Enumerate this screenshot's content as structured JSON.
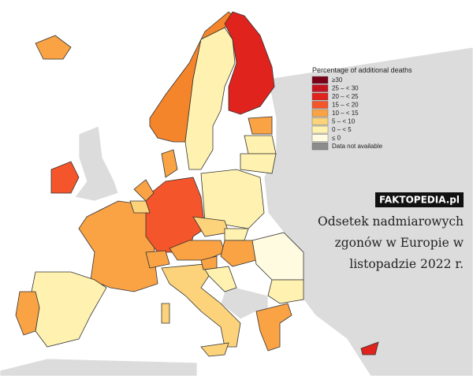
{
  "legend": {
    "title": "Percentage of additional deaths",
    "items": [
      {
        "label": "≥30",
        "color": "#7a0019"
      },
      {
        "label": "25 – < 30",
        "color": "#c4141f"
      },
      {
        "label": "20 – < 25",
        "color": "#e0231d"
      },
      {
        "label": "15 – < 20",
        "color": "#f4552b"
      },
      {
        "label": "10 – < 15",
        "color": "#f9a345"
      },
      {
        "label": "5 – < 10",
        "color": "#fcd37a"
      },
      {
        "label": "0 – < 5",
        "color": "#fff2b0"
      },
      {
        "label": "≤ 0",
        "color": "#fffbe0"
      },
      {
        "label": "Data not available",
        "color": "#8c8c8c"
      }
    ]
  },
  "watermark": "FAKTOPEDIA.pl",
  "caption": [
    "Odsetek nadmiarowych",
    "zgonów w Europie w",
    "listopadzie 2022 r."
  ]
}
